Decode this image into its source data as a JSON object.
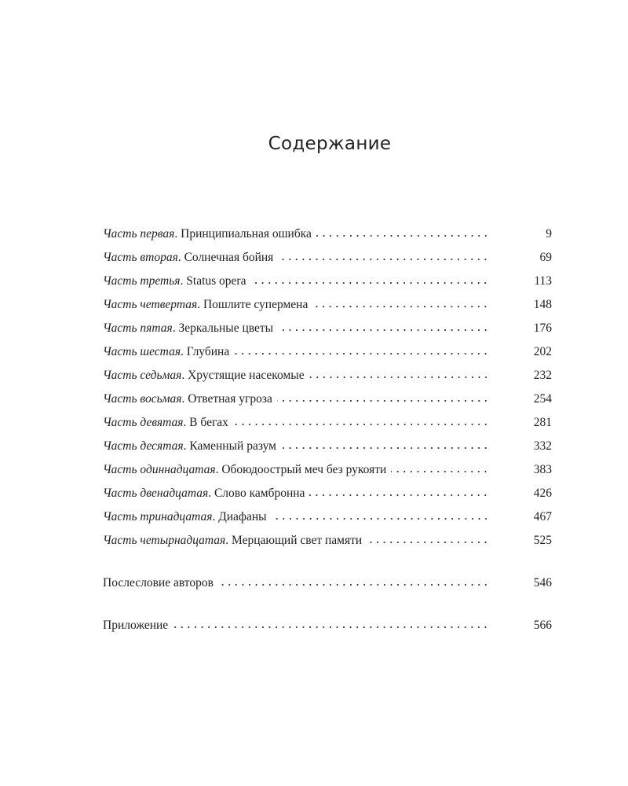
{
  "title": "Содержание",
  "entries": [
    {
      "part": "Часть первая",
      "name": "Принципиальная ошибка",
      "page": "9"
    },
    {
      "part": "Часть вторая",
      "name": "Солнечная бойня",
      "page": "69"
    },
    {
      "part": "Часть третья",
      "name": "Status opera",
      "page": "113"
    },
    {
      "part": "Часть четвертая",
      "name": "Пошлите супермена",
      "page": "148"
    },
    {
      "part": "Часть пятая",
      "name": "Зеркальные цветы",
      "page": "176"
    },
    {
      "part": "Часть шестая",
      "name": "Глубина",
      "page": "202"
    },
    {
      "part": "Часть седьмая",
      "name": "Хрустящие насекомые",
      "page": "232"
    },
    {
      "part": "Часть восьмая",
      "name": "Ответная угроза",
      "page": "254"
    },
    {
      "part": "Часть девятая",
      "name": "В бегах",
      "page": "281"
    },
    {
      "part": "Часть десятая",
      "name": "Каменный разум",
      "page": "332"
    },
    {
      "part": "Часть одиннадцатая",
      "name": "Обоюдоострый меч без рукояти",
      "page": "383"
    },
    {
      "part": "Часть двенадцатая",
      "name": "Слово камбронна",
      "page": "426"
    },
    {
      "part": "Часть тринадцатая",
      "name": "Диафаны",
      "page": "467"
    },
    {
      "part": "Часть четырнадцатая",
      "name": "Мерцающий свет памяти",
      "page": "525"
    }
  ],
  "afterword": {
    "name": "Послесловие авторов",
    "page": "546"
  },
  "appendix": {
    "name": "Приложение",
    "page": "566"
  }
}
